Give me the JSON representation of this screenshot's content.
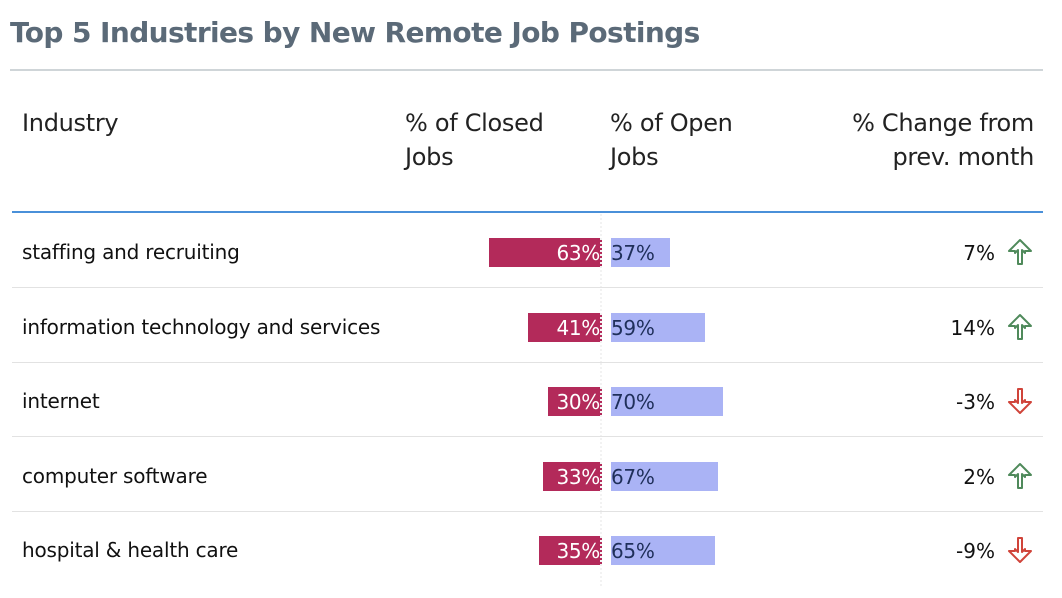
{
  "chart_data": {
    "type": "table",
    "title": "Top 5 Industries by New Remote Job Postings",
    "columns": [
      "Industry",
      "% of Closed Jobs",
      "% of Open Jobs",
      "% Change from prev. month"
    ],
    "rows": [
      {
        "industry": "staffing and recruiting",
        "closed": 63,
        "closed_label": "63%",
        "open": 37,
        "open_label": "37%",
        "change": 7,
        "change_label": "7%",
        "direction": "up"
      },
      {
        "industry": "information technology and services",
        "closed": 41,
        "closed_label": "41%",
        "open": 59,
        "open_label": "59%",
        "change": 14,
        "change_label": "14%",
        "direction": "up"
      },
      {
        "industry": "internet",
        "closed": 30,
        "closed_label": "30%",
        "open": 70,
        "open_label": "70%",
        "change": -3,
        "change_label": "-3%",
        "direction": "down"
      },
      {
        "industry": "computer software",
        "closed": 33,
        "closed_label": "33%",
        "open": 67,
        "open_label": "67%",
        "change": 2,
        "change_label": "2%",
        "direction": "up"
      },
      {
        "industry": "hospital & health care",
        "closed": 35,
        "closed_label": "35%",
        "open": 65,
        "open_label": "65%",
        "change": -9,
        "change_label": "-9%",
        "direction": "down"
      }
    ],
    "colors": {
      "closed_bar": "#b32a5a",
      "open_bar": "#aab3f5",
      "up_arrow": "#4f8a5b",
      "down_arrow": "#d0443a",
      "title": "#5b6a78",
      "header_rule": "#4a90d9"
    },
    "icons": {
      "up": "arrow-up-icon",
      "down": "arrow-down-icon"
    }
  }
}
